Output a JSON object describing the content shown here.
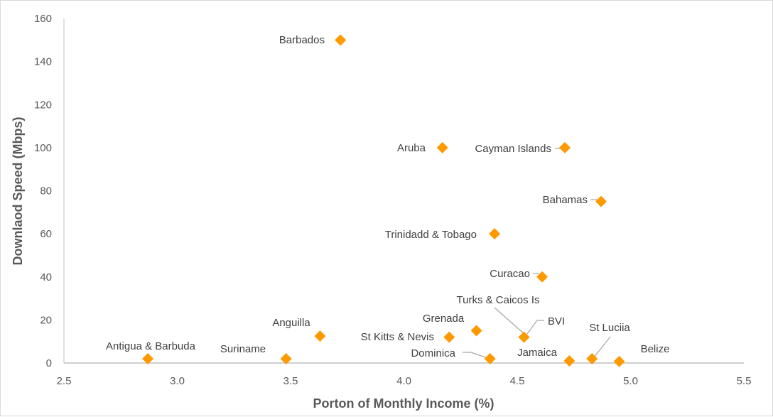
{
  "chart_data": {
    "type": "scatter",
    "title": "",
    "xlabel": "Porton of Monthly Income (%)",
    "ylabel": "Downlaod Speed (Mbps)",
    "xlim": [
      2.5,
      5.5
    ],
    "ylim": [
      0,
      160
    ],
    "xticks": [
      "2.5",
      "3.0",
      "3.5",
      "4.0",
      "4.5",
      "5.0",
      "5.5"
    ],
    "yticks": [
      "0",
      "20",
      "40",
      "60",
      "80",
      "100",
      "120",
      "140",
      "160"
    ],
    "grid": false,
    "marker_color": "#FF9900",
    "points": [
      {
        "label": "Barbados",
        "x": 3.72,
        "y": 150
      },
      {
        "label": "Aruba",
        "x": 4.17,
        "y": 100
      },
      {
        "label": "Cayman Islands",
        "x": 4.71,
        "y": 100
      },
      {
        "label": "Bahamas",
        "x": 4.87,
        "y": 75
      },
      {
        "label": "Trinidadd & Tobago",
        "x": 4.4,
        "y": 60
      },
      {
        "label": "Curacao",
        "x": 4.61,
        "y": 40
      },
      {
        "label": "Turks & Caicos Is",
        "x": 4.53,
        "y": 12
      },
      {
        "label": "BVI",
        "x": 4.53,
        "y": 12.5
      },
      {
        "label": "Grenada",
        "x": 4.32,
        "y": 15
      },
      {
        "label": "St Kitts & Nevis",
        "x": 4.2,
        "y": 12
      },
      {
        "label": "Anguilla",
        "x": 3.63,
        "y": 12.5
      },
      {
        "label": "Antigua & Barbuda",
        "x": 2.87,
        "y": 2
      },
      {
        "label": "Suriname",
        "x": 3.48,
        "y": 2
      },
      {
        "label": "Dominica",
        "x": 4.38,
        "y": 2
      },
      {
        "label": "Jamaica",
        "x": 4.73,
        "y": 1
      },
      {
        "label": "St Luciia",
        "x": 4.83,
        "y": 2
      },
      {
        "label": "Belize",
        "x": 4.95,
        "y": 0.7
      }
    ]
  }
}
